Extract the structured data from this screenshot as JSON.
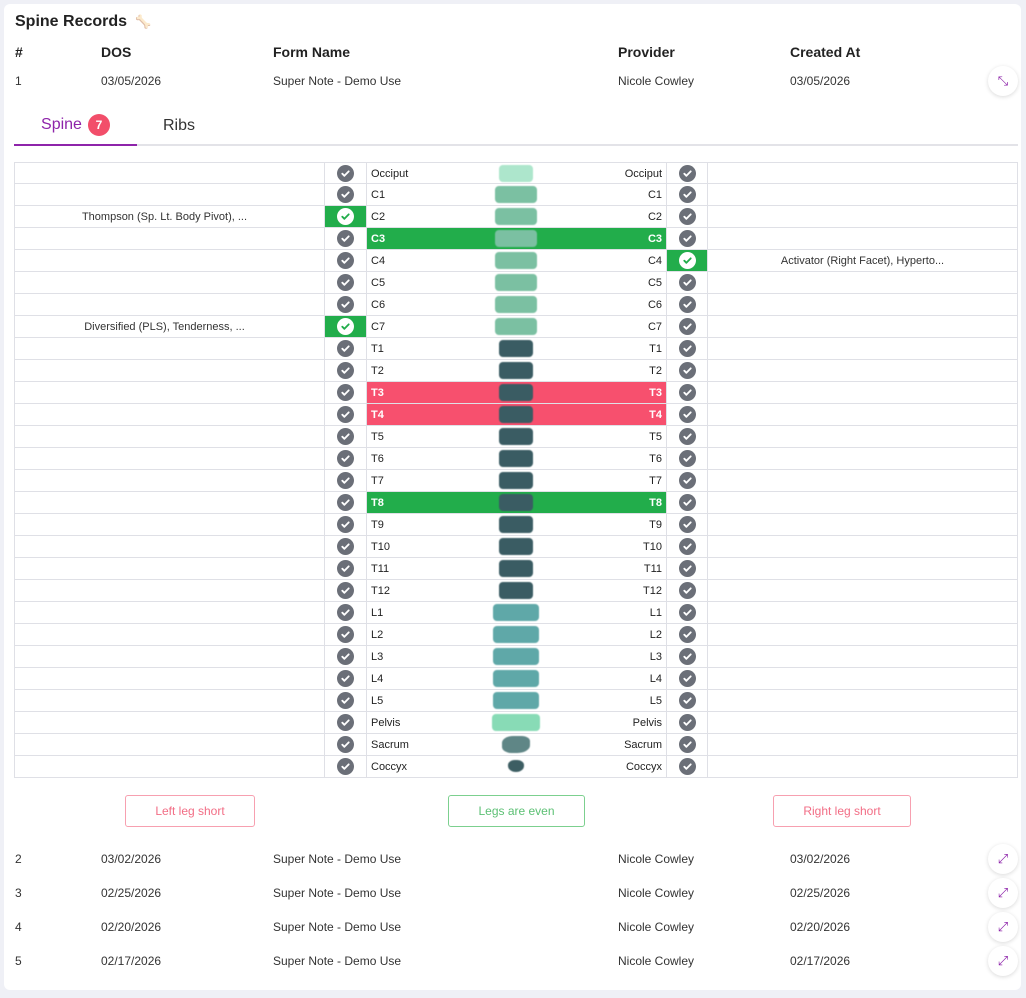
{
  "title": "Spine Records",
  "columns": [
    "#",
    "DOS",
    "Form Name",
    "Provider",
    "Created At"
  ],
  "records": [
    {
      "num": "1",
      "dos": "03/05/2026",
      "form": "Super Note - Demo Use",
      "provider": "Nicole Cowley",
      "created": "03/05/2026",
      "expanded": true
    },
    {
      "num": "2",
      "dos": "03/02/2026",
      "form": "Super Note - Demo Use",
      "provider": "Nicole Cowley",
      "created": "03/02/2026"
    },
    {
      "num": "3",
      "dos": "02/25/2026",
      "form": "Super Note - Demo Use",
      "provider": "Nicole Cowley",
      "created": "02/25/2026"
    },
    {
      "num": "4",
      "dos": "02/20/2026",
      "form": "Super Note - Demo Use",
      "provider": "Nicole Cowley",
      "created": "02/20/2026"
    },
    {
      "num": "5",
      "dos": "02/17/2026",
      "form": "Super Note - Demo Use",
      "provider": "Nicole Cowley",
      "created": "02/17/2026"
    }
  ],
  "tabs": {
    "spine": "Spine",
    "spine_badge": "7",
    "ribs": "Ribs"
  },
  "colors": {
    "accent": "#8e24aa",
    "green": "#22ad4b",
    "red": "#f7506e"
  },
  "segments": [
    {
      "label": "Occiput",
      "color": "#ade6cc"
    },
    {
      "label": "C1",
      "color": "#7bc0a2"
    },
    {
      "label": "C2",
      "color": "#7bc0a2",
      "left_note": "Thompson (Sp. Lt. Body Pivot), ..."
    },
    {
      "label": "C3",
      "color": "#7bc0a2",
      "highlight": "green"
    },
    {
      "label": "C4",
      "color": "#7bc0a2",
      "right_note": "Activator (Right Facet), Hyperto..."
    },
    {
      "label": "C5",
      "color": "#7bc0a2"
    },
    {
      "label": "C6",
      "color": "#7bc0a2"
    },
    {
      "label": "C7",
      "color": "#7bc0a2",
      "left_note": "Diversified (PLS), Tenderness, ..."
    },
    {
      "label": "T1",
      "color": "#3a5c63"
    },
    {
      "label": "T2",
      "color": "#3a5c63"
    },
    {
      "label": "T3",
      "color": "#3a5c63",
      "highlight": "red"
    },
    {
      "label": "T4",
      "color": "#3a5c63",
      "highlight": "red"
    },
    {
      "label": "T5",
      "color": "#3a5c63"
    },
    {
      "label": "T6",
      "color": "#3a5c63"
    },
    {
      "label": "T7",
      "color": "#3a5c63"
    },
    {
      "label": "T8",
      "color": "#3a5c63",
      "highlight": "green"
    },
    {
      "label": "T9",
      "color": "#3a5c63"
    },
    {
      "label": "T10",
      "color": "#3a5c63"
    },
    {
      "label": "T11",
      "color": "#3a5c63"
    },
    {
      "label": "T12",
      "color": "#3a5c63"
    },
    {
      "label": "L1",
      "color": "#5fa8a8"
    },
    {
      "label": "L2",
      "color": "#5fa8a8"
    },
    {
      "label": "L3",
      "color": "#5fa8a8"
    },
    {
      "label": "L4",
      "color": "#5fa8a8"
    },
    {
      "label": "L5",
      "color": "#5fa8a8"
    },
    {
      "label": "Pelvis",
      "color": "#88dbb6"
    },
    {
      "label": "Sacrum",
      "color": "#5f8686"
    },
    {
      "label": "Coccyx",
      "color": "#3d5e63"
    }
  ],
  "legs": {
    "left": "Left leg short",
    "even": "Legs are even",
    "right": "Right leg short"
  }
}
